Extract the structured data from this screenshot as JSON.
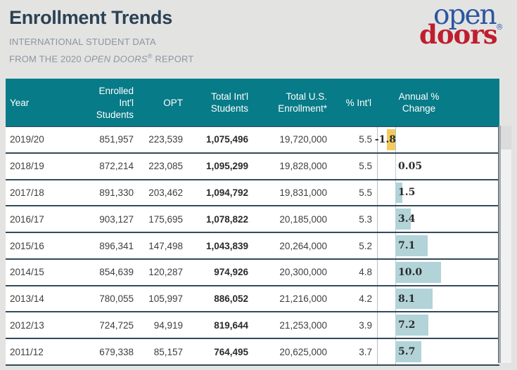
{
  "header": {
    "title": "Enrollment Trends",
    "subtitle_line1": "INTERNATIONAL STUDENT DATA",
    "subtitle_line2_prefix": "FROM THE 2020 ",
    "subtitle_line2_italic": "OPEN DOORS",
    "subtitle_line2_reg": "®",
    "subtitle_line2_suffix": " REPORT"
  },
  "logo": {
    "word1": "open",
    "reg": "®",
    "word2": "doors"
  },
  "colors": {
    "header_bg": "#077b87",
    "bar_positive": "#b2d3d8",
    "bar_negative": "#f5ca5c",
    "title_text": "#2b4254",
    "subtitle_text": "#8b96a1",
    "logo_blue": "#2a56a0",
    "logo_red": "#bf1e2e",
    "row_border": "#33495a"
  },
  "table": {
    "columns": [
      {
        "id": "year",
        "label_lines": [
          "Year"
        ]
      },
      {
        "id": "enrolled-intl-students",
        "label_lines": [
          "Enrolled",
          "Int'l",
          "Students"
        ]
      },
      {
        "id": "opt",
        "label_lines": [
          "OPT"
        ]
      },
      {
        "id": "total-intl-students",
        "label_lines": [
          "Total Int'l",
          "Students"
        ]
      },
      {
        "id": "total-us-enrollment",
        "label_lines": [
          "Total U.S.",
          "Enrollment*"
        ]
      },
      {
        "id": "pct-intl",
        "label_lines": [
          "% Int'l"
        ]
      },
      {
        "id": "annual-pct-change",
        "label_lines": [
          "Annual %",
          "Change"
        ]
      }
    ],
    "rows": [
      {
        "year": "2019/20",
        "enrolled": "851,957",
        "opt": "223,539",
        "total_intl": "1,075,496",
        "total_us": "19,720,000",
        "pct_intl": "5.5",
        "annual_change_label": "-1.8",
        "annual_change_value": -1.8
      },
      {
        "year": "2018/19",
        "enrolled": "872,214",
        "opt": "223,085",
        "total_intl": "1,095,299",
        "total_us": "19,828,000",
        "pct_intl": "5.5",
        "annual_change_label": "0.05",
        "annual_change_value": 0.05
      },
      {
        "year": "2017/18",
        "enrolled": "891,330",
        "opt": "203,462",
        "total_intl": "1,094,792",
        "total_us": "19,831,000",
        "pct_intl": "5.5",
        "annual_change_label": "1.5",
        "annual_change_value": 1.5
      },
      {
        "year": "2016/17",
        "enrolled": "903,127",
        "opt": "175,695",
        "total_intl": "1,078,822",
        "total_us": "20,185,000",
        "pct_intl": "5.3",
        "annual_change_label": "3.4",
        "annual_change_value": 3.4
      },
      {
        "year": "2015/16",
        "enrolled": "896,341",
        "opt": "147,498",
        "total_intl": "1,043,839",
        "total_us": "20,264,000",
        "pct_intl": "5.2",
        "annual_change_label": "7.1",
        "annual_change_value": 7.1
      },
      {
        "year": "2014/15",
        "enrolled": "854,639",
        "opt": "120,287",
        "total_intl": "974,926",
        "total_us": "20,300,000",
        "pct_intl": "4.8",
        "annual_change_label": "10.0",
        "annual_change_value": 10.0
      },
      {
        "year": "2013/14",
        "enrolled": "780,055",
        "opt": "105,997",
        "total_intl": "886,052",
        "total_us": "21,216,000",
        "pct_intl": "4.2",
        "annual_change_label": "8.1",
        "annual_change_value": 8.1
      },
      {
        "year": "2012/13",
        "enrolled": "724,725",
        "opt": "94,919",
        "total_intl": "819,644",
        "total_us": "21,253,000",
        "pct_intl": "3.9",
        "annual_change_label": "7.2",
        "annual_change_value": 7.2
      },
      {
        "year": "2011/12",
        "enrolled": "679,338",
        "opt": "85,157",
        "total_intl": "764,495",
        "total_us": "20,625,000",
        "pct_intl": "3.7",
        "annual_change_label": "5.7",
        "annual_change_value": 5.7
      }
    ]
  },
  "chart_data": {
    "type": "bar",
    "title": "Annual % Change",
    "orientation": "horizontal",
    "categories": [
      "2019/20",
      "2018/19",
      "2017/18",
      "2016/17",
      "2015/16",
      "2014/15",
      "2013/14",
      "2012/13",
      "2011/12"
    ],
    "values": [
      -1.8,
      0.05,
      1.5,
      3.4,
      7.1,
      10.0,
      8.1,
      7.2,
      5.7
    ],
    "positive_color": "#b2d3d8",
    "negative_color": "#f5ca5c",
    "axis_baseline": 0,
    "xlim": [
      -4,
      27
    ],
    "grid": false,
    "legend": false
  }
}
